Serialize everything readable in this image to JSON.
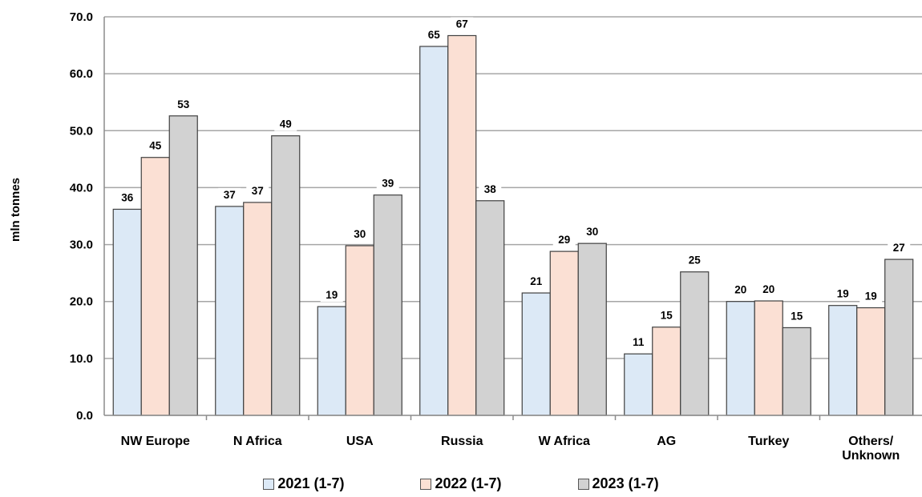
{
  "chart_data": {
    "type": "bar",
    "ylabel": "mln tonnes",
    "ylim": [
      0,
      70
    ],
    "yticks": [
      "0.0",
      "10.0",
      "20.0",
      "30.0",
      "40.0",
      "50.0",
      "60.0",
      "70.0"
    ],
    "grid": true,
    "legend_position": "bottom",
    "categories": [
      "NW Europe",
      "N Africa",
      "USA",
      "Russia",
      "W Africa",
      "AG",
      "Turkey",
      "Others/\nUnknown"
    ],
    "series": [
      {
        "name": "2021 (1-7)",
        "color": "#dce9f6",
        "values": [
          36.2,
          36.7,
          19.1,
          64.8,
          21.5,
          10.8,
          20.0,
          19.3
        ],
        "labels": [
          "36",
          "37",
          "19",
          "65",
          "21",
          "11",
          "20",
          "19"
        ]
      },
      {
        "name": "2022 (1-7)",
        "color": "#fbe0d4",
        "values": [
          45.3,
          37.4,
          29.8,
          66.7,
          28.8,
          15.5,
          20.1,
          18.9
        ],
        "labels": [
          "45",
          "37",
          "30",
          "67",
          "29",
          "15",
          "20",
          "19"
        ]
      },
      {
        "name": "2023 (1-7)",
        "color": "#d2d2d2",
        "values": [
          52.6,
          49.1,
          38.7,
          37.7,
          30.2,
          25.2,
          15.4,
          27.4
        ],
        "labels": [
          "53",
          "49",
          "39",
          "38",
          "30",
          "25",
          "15",
          "27"
        ]
      }
    ]
  }
}
